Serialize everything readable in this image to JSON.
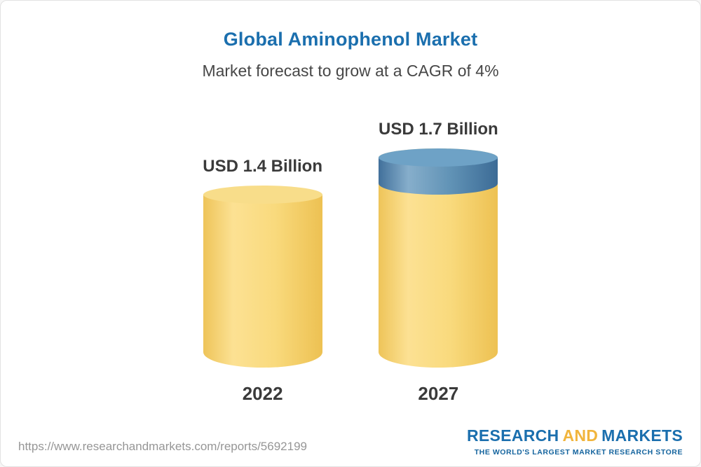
{
  "title": "Global Aminophenol Market",
  "subtitle": "Market forecast to grow at a CAGR of 4%",
  "chart_data": {
    "type": "bar",
    "title": "Global Aminophenol Market",
    "subtitle": "Market forecast to grow at a CAGR of 4%",
    "unit": "USD Billion",
    "cagr_text": "4%",
    "categories": [
      "2022",
      "2027"
    ],
    "values": [
      1.4,
      1.7
    ],
    "ylim": [
      0,
      1.7
    ],
    "legend": "none",
    "grid": "off",
    "bars": [
      {
        "category": "2022",
        "value": 1.4,
        "label": "USD 1.4 Billion",
        "segments": [
          {
            "name": "base",
            "value": 1.4,
            "color": "#f5d372"
          }
        ]
      },
      {
        "category": "2027",
        "value": 1.7,
        "label": "USD 1.7 Billion",
        "segments": [
          {
            "name": "base",
            "value": 1.4,
            "color": "#f5d372"
          },
          {
            "name": "growth",
            "value": 0.3,
            "color": "#5b8bb2"
          }
        ]
      }
    ]
  },
  "footer": {
    "url": "https://www.researchandmarkets.com/reports/5692199",
    "logo": {
      "research": "RESEARCH",
      "and": "AND",
      "markets": "MARKETS",
      "tagline": "THE WORLD'S LARGEST MARKET RESEARCH STORE"
    }
  },
  "colors": {
    "title_blue": "#1b6fae",
    "subtitle_gray": "#474747",
    "bar_yellow": "#f5d372",
    "bar_blue": "#5b8bb2",
    "logo_blue": "#1b6fae",
    "logo_yellow": "#f1b53c",
    "url_gray": "#969696"
  }
}
